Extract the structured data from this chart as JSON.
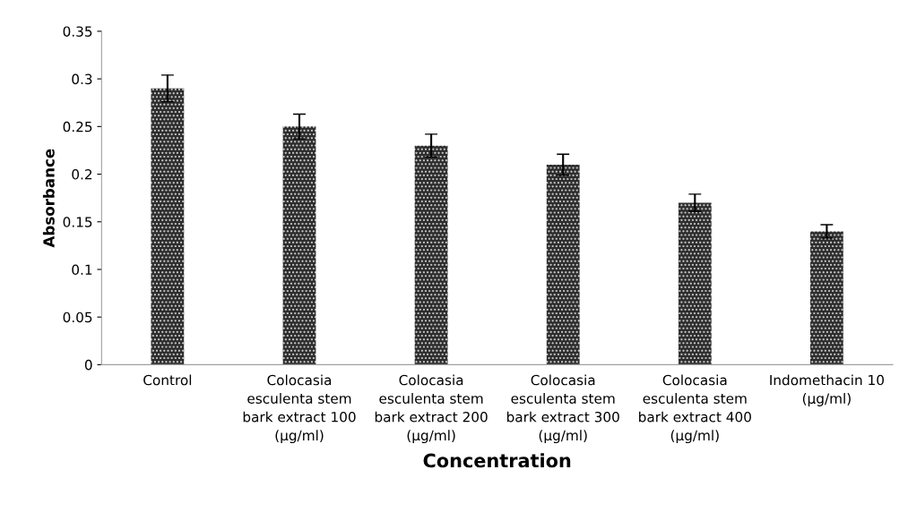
{
  "chart_data": {
    "type": "bar",
    "xlabel": "Concentration",
    "ylabel": "Absorbance",
    "categories": [
      "Control",
      "Colocasia esculenta stem bark extract 100 (µg/ml)",
      "Colocasia esculenta stem bark extract 200 (µg/ml)",
      "Colocasia esculenta stem bark extract 300 (µg/ml)",
      "Colocasia esculenta stem bark extract 400 (µg/ml)",
      "Indomethacin 10 (µg/ml)"
    ],
    "values": [
      0.29,
      0.25,
      0.23,
      0.21,
      0.17,
      0.14
    ],
    "errors": [
      0.014,
      0.013,
      0.012,
      0.011,
      0.009,
      0.007
    ],
    "color": "#2e2e2e",
    "ylim": [
      0,
      0.35
    ],
    "yticks": [
      {
        "value": 0,
        "label": "0"
      },
      0.05,
      0.1,
      0.15,
      0.2,
      0.25,
      0.3,
      0.35
    ],
    "grid": false,
    "legend": false
  }
}
